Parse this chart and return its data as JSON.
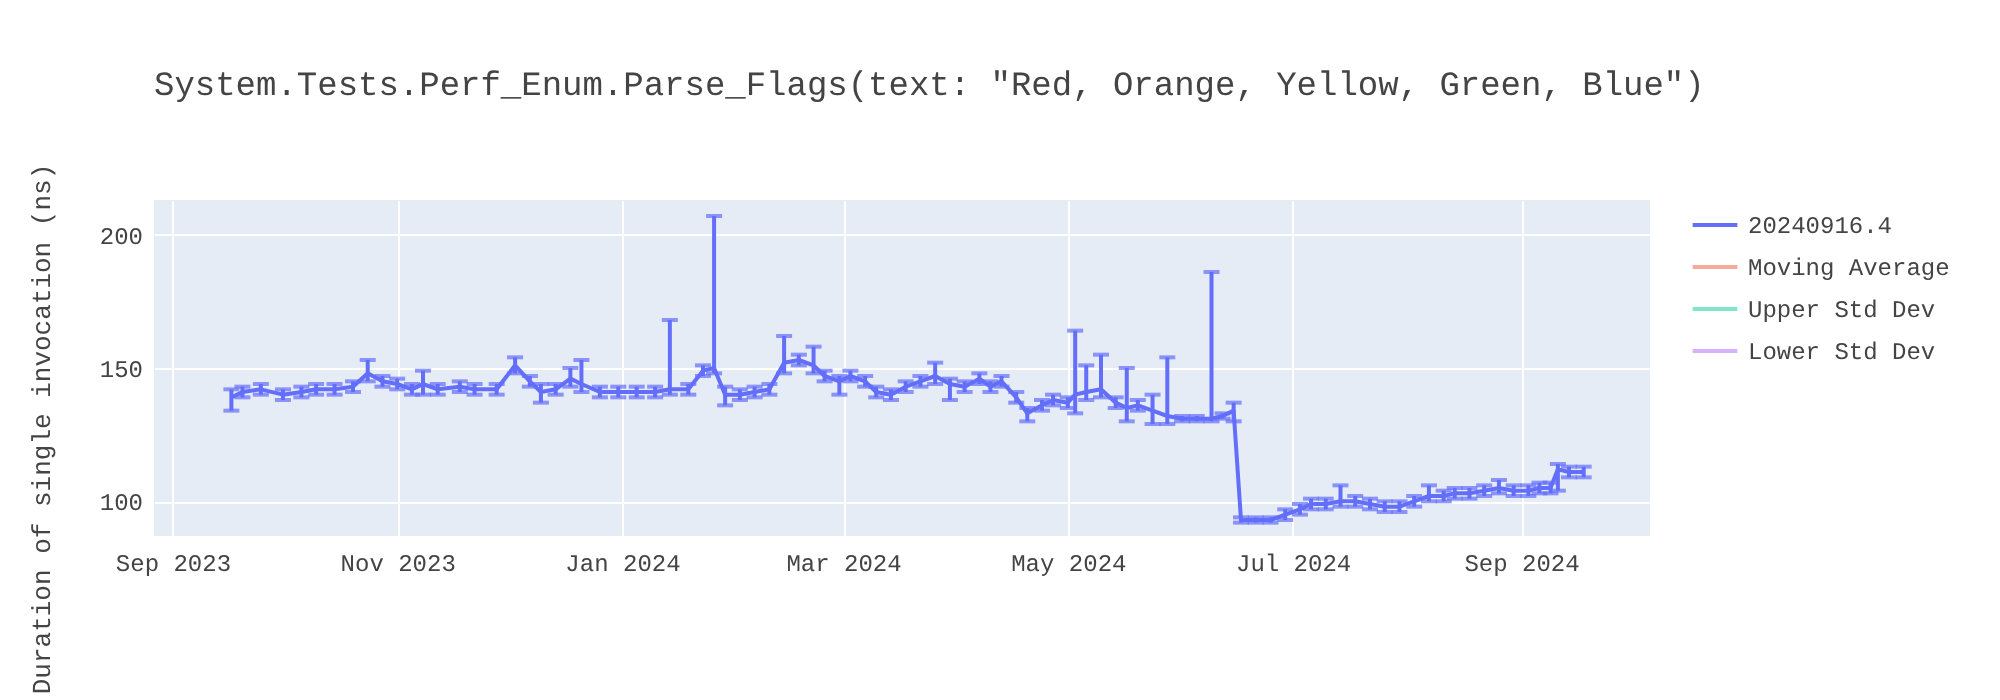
{
  "chart_data": {
    "type": "line",
    "title": "System.Tests.Perf_Enum.Parse_Flags(text: \"Red, Orange, Yellow, Green, Blue\")",
    "ylabel": "Duration of single invocation (ns)",
    "xlim": [
      "2023-08-27",
      "2024-10-06"
    ],
    "ylim": [
      87,
      213
    ],
    "xticks": [
      {
        "value": "2023-09-01",
        "label": "Sep 2023"
      },
      {
        "value": "2023-11-01",
        "label": "Nov 2023"
      },
      {
        "value": "2024-01-01",
        "label": "Jan 2024"
      },
      {
        "value": "2024-03-01",
        "label": "Mar 2024"
      },
      {
        "value": "2024-05-01",
        "label": "May 2024"
      },
      {
        "value": "2024-07-01",
        "label": "Jul 2024"
      },
      {
        "value": "2024-09-01",
        "label": "Sep 2024"
      }
    ],
    "yticks": [
      100,
      150,
      200
    ],
    "grid": true,
    "legend": "top right",
    "marker": "none",
    "line_style": "solid",
    "series": [
      {
        "name": "20240916.4",
        "color": "#636efa",
        "x": [
          "2023-09-17",
          "2023-09-20",
          "2023-09-25",
          "2023-10-01",
          "2023-10-06",
          "2023-10-10",
          "2023-10-15",
          "2023-10-20",
          "2023-10-24",
          "2023-10-28",
          "2023-11-01",
          "2023-11-05",
          "2023-11-08",
          "2023-11-12",
          "2023-11-18",
          "2023-11-22",
          "2023-11-28",
          "2023-12-03",
          "2023-12-07",
          "2023-12-10",
          "2023-12-14",
          "2023-12-18",
          "2023-12-21",
          "2023-12-26",
          "2023-12-31",
          "2024-01-05",
          "2024-01-10",
          "2024-01-14",
          "2024-01-19",
          "2024-01-23",
          "2024-01-26",
          "2024-01-29",
          "2024-02-02",
          "2024-02-06",
          "2024-02-10",
          "2024-02-14",
          "2024-02-18",
          "2024-02-22",
          "2024-02-25",
          "2024-02-29",
          "2024-03-03",
          "2024-03-07",
          "2024-03-10",
          "2024-03-14",
          "2024-03-18",
          "2024-03-22",
          "2024-03-26",
          "2024-03-30",
          "2024-04-03",
          "2024-04-07",
          "2024-04-10",
          "2024-04-13",
          "2024-04-17",
          "2024-04-20",
          "2024-04-24",
          "2024-04-27",
          "2024-05-01",
          "2024-05-03",
          "2024-05-06",
          "2024-05-10",
          "2024-05-14",
          "2024-05-17",
          "2024-05-20",
          "2024-05-24",
          "2024-05-28",
          "2024-06-01",
          "2024-06-05",
          "2024-06-09",
          "2024-06-12",
          "2024-06-15",
          "2024-06-17",
          "2024-06-21",
          "2024-06-25",
          "2024-06-29",
          "2024-07-03",
          "2024-07-06",
          "2024-07-10",
          "2024-07-14",
          "2024-07-18",
          "2024-07-22",
          "2024-07-26",
          "2024-07-30",
          "2024-08-03",
          "2024-08-07",
          "2024-08-11",
          "2024-08-14",
          "2024-08-18",
          "2024-08-22",
          "2024-08-26",
          "2024-08-30",
          "2024-09-03",
          "2024-09-06",
          "2024-09-09",
          "2024-09-11",
          "2024-09-14",
          "2024-09-18"
        ],
        "values": [
          139,
          141,
          142,
          140,
          141,
          142,
          142,
          143,
          148,
          145,
          144,
          142,
          144,
          142,
          143,
          142,
          142,
          151,
          145,
          141,
          142,
          146,
          144,
          141,
          141,
          141,
          141,
          142,
          142,
          149,
          150,
          140,
          140,
          141,
          142,
          152,
          153,
          151,
          147,
          145,
          147,
          145,
          141,
          140,
          143,
          145,
          147,
          144,
          143,
          146,
          143,
          145,
          139,
          133,
          136,
          138,
          137,
          140,
          141,
          142,
          137,
          135,
          136,
          134,
          132,
          131,
          131,
          131,
          132,
          134,
          93,
          93,
          93,
          95,
          97,
          99,
          99,
          100,
          100,
          99,
          98,
          98,
          100,
          102,
          102,
          103,
          103,
          104,
          105,
          104,
          104,
          105,
          105,
          112,
          111,
          111
        ],
        "errors": [
          [
            134,
            142
          ],
          2,
          2,
          2,
          2,
          2,
          2,
          2,
          [
            145,
            153
          ],
          2,
          2,
          2,
          [
            140,
            149
          ],
          2,
          2,
          2,
          2,
          [
            148,
            154
          ],
          2,
          [
            137,
            144
          ],
          2,
          [
            143,
            150
          ],
          [
            141,
            153
          ],
          2,
          2,
          2,
          2,
          [
            140,
            168
          ],
          2,
          2,
          [
            148,
            207
          ],
          [
            136,
            143
          ],
          2,
          2,
          2,
          [
            148,
            162
          ],
          2,
          [
            148,
            158
          ],
          2,
          [
            140,
            147
          ],
          2,
          2,
          2,
          2,
          2,
          2,
          [
            144,
            152
          ],
          [
            138,
            146
          ],
          2,
          2,
          2,
          2,
          2,
          [
            130,
            135
          ],
          2,
          2,
          2,
          [
            133,
            164
          ],
          [
            138,
            151
          ],
          [
            139,
            155
          ],
          2,
          [
            130,
            150
          ],
          2,
          [
            129,
            140
          ],
          [
            129,
            154
          ],
          1,
          1,
          [
            130,
            186
          ],
          1,
          [
            130,
            137
          ],
          1,
          1,
          1,
          2,
          2,
          2,
          2,
          [
            98,
            106
          ],
          2,
          2,
          2,
          2,
          2,
          [
            100,
            106
          ],
          2,
          [
            101,
            105
          ],
          2,
          2,
          [
            103,
            108
          ],
          2,
          2,
          2,
          2,
          [
            104,
            114
          ],
          2,
          2
        ]
      },
      {
        "name": "Moving Average",
        "color": "#f7a99a"
      },
      {
        "name": "Upper Std Dev",
        "color": "#80e6cb"
      },
      {
        "name": "Lower Std Dev",
        "color": "#d5b1fd"
      }
    ]
  }
}
